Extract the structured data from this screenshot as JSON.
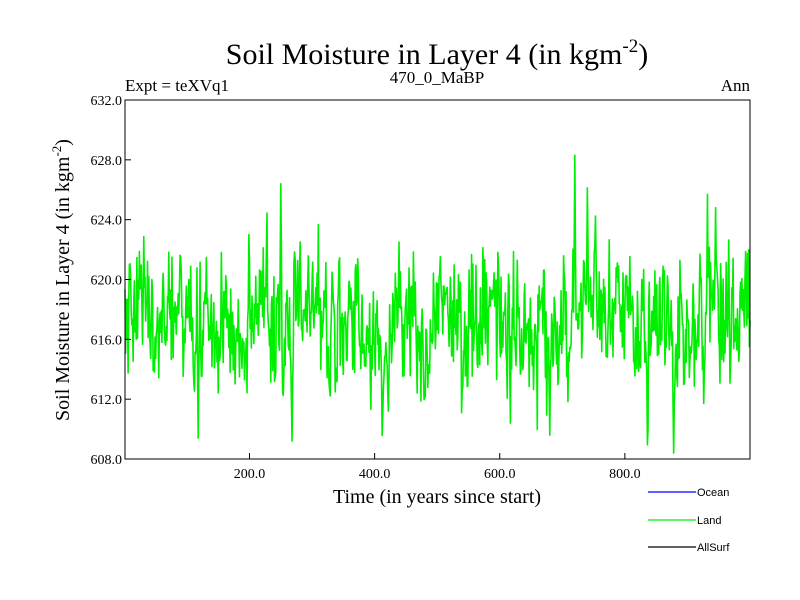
{
  "chart_data": {
    "type": "line",
    "title_main": "Soil Moisture in Layer 4 (in kgm",
    "title_sup": "-2",
    "title_close": ")",
    "subtitle_left": "Expt = teXVq1",
    "subtitle_center": "470_0_MaBP",
    "subtitle_right": "Ann",
    "xlabel": "Time (in years since start)",
    "ylabel_main": "Soil Moisture in Layer 4 (in kgm",
    "ylabel_sup": "-2",
    "ylabel_close": ")",
    "xlim": [
      1,
      1000
    ],
    "ylim": [
      608.0,
      632.0
    ],
    "x_ticks": [
      200,
      400,
      600,
      800
    ],
    "x_tick_labels": [
      "200.0",
      "400.0",
      "600.0",
      "800.0"
    ],
    "y_ticks": [
      608,
      612,
      616,
      620,
      624,
      628,
      632
    ],
    "y_tick_labels": [
      "608.0",
      "612.0",
      "616.0",
      "620.0",
      "624.0",
      "628.0",
      "632.0"
    ],
    "grid": false,
    "legend_position": "bottom-right",
    "legend": [
      {
        "name": "Ocean",
        "color": "#0000ff"
      },
      {
        "name": "Land",
        "color": "#00ee00"
      },
      {
        "name": "AllSurf",
        "color": "#000000"
      }
    ],
    "series": [
      {
        "name": "Land",
        "color": "#00ee00",
        "x_start": 1,
        "x_step": 1,
        "count": 1000,
        "mean": 617.2,
        "std": 2.6,
        "min": 608.4,
        "max": 628.3,
        "peaks": [
          [
            250,
            626.4
          ],
          [
            720,
            628.3
          ],
          [
            932,
            625.7
          ],
          [
            945,
            624.8
          ]
        ],
        "troughs": [
          [
            118,
            609.4
          ],
          [
            268,
            609.2
          ],
          [
            680,
            609.6
          ],
          [
            878,
            608.4
          ]
        ]
      }
    ]
  }
}
